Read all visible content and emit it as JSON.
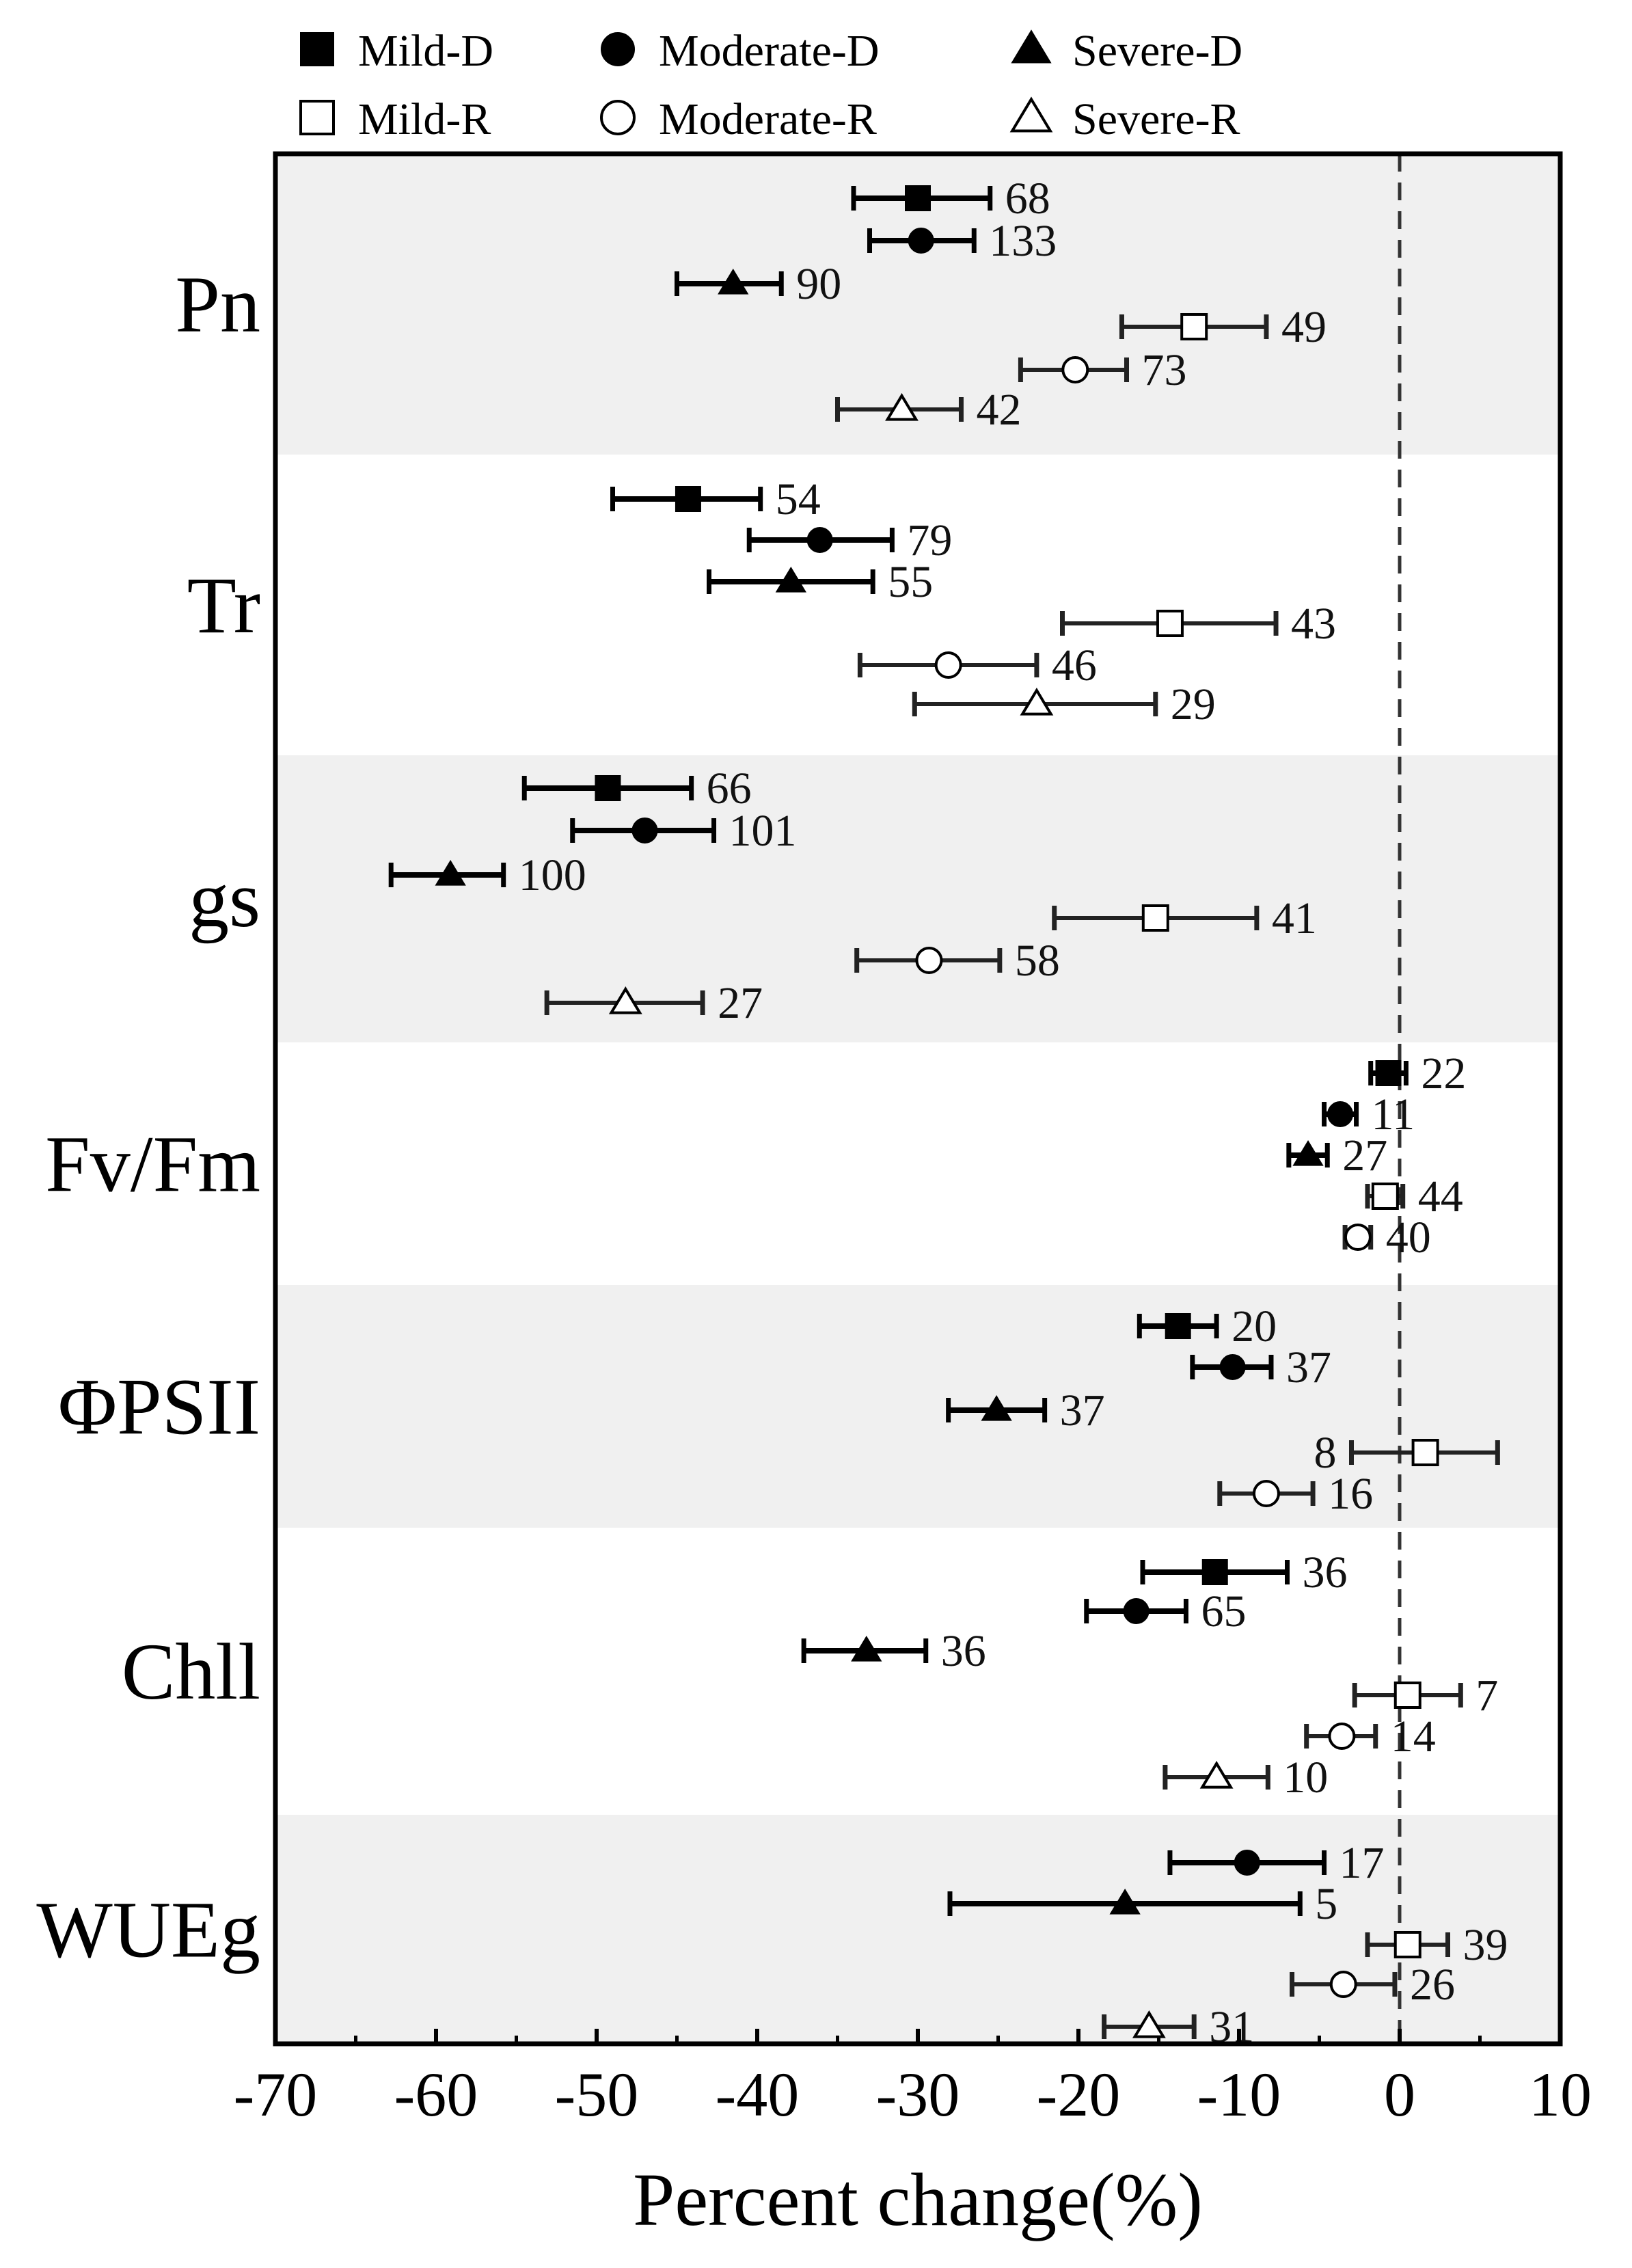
{
  "chart_data": {
    "type": "forest",
    "xlabel": "Percent change(%)",
    "xlim": [
      -70,
      10
    ],
    "xticks": [
      -70,
      -60,
      -50,
      -40,
      -30,
      -20,
      -10,
      0,
      10
    ],
    "reference_line": 0,
    "legend": [
      {
        "name": "Mild-D",
        "marker": "square",
        "fill": "filled"
      },
      {
        "name": "Moderate-D",
        "marker": "circle",
        "fill": "filled"
      },
      {
        "name": "Severe-D",
        "marker": "triangle",
        "fill": "filled"
      },
      {
        "name": "Mild-R",
        "marker": "square",
        "fill": "open"
      },
      {
        "name": "Moderate-R",
        "marker": "circle",
        "fill": "open"
      },
      {
        "name": "Severe-R",
        "marker": "triangle",
        "fill": "open"
      }
    ],
    "groups": [
      {
        "name": "Pn",
        "shaded": true,
        "points": [
          {
            "series": "Mild-D",
            "value": -30,
            "low": -34,
            "high": -25.5,
            "n": "68"
          },
          {
            "series": "Moderate-D",
            "value": -29.8,
            "low": -33,
            "high": -26.5,
            "n": "133"
          },
          {
            "series": "Severe-D",
            "value": -41.5,
            "low": -45,
            "high": -38.5,
            "n": "90"
          },
          {
            "series": "Mild-R",
            "value": -12.8,
            "low": -17.3,
            "high": -8.3,
            "n": "49"
          },
          {
            "series": "Moderate-R",
            "value": -20.2,
            "low": -23.6,
            "high": -17,
            "n": "73"
          },
          {
            "series": "Severe-R",
            "value": -31,
            "low": -35,
            "high": -27.3,
            "n": "42"
          }
        ]
      },
      {
        "name": "Tr",
        "shaded": false,
        "points": [
          {
            "series": "Mild-D",
            "value": -44.3,
            "low": -49,
            "high": -39.8,
            "n": "54"
          },
          {
            "series": "Moderate-D",
            "value": -36.1,
            "low": -40.5,
            "high": -31.6,
            "n": "79"
          },
          {
            "series": "Severe-D",
            "value": -37.9,
            "low": -43,
            "high": -32.8,
            "n": "55"
          },
          {
            "series": "Mild-R",
            "value": -14.3,
            "low": -21,
            "high": -7.7,
            "n": "43"
          },
          {
            "series": "Moderate-R",
            "value": -28.1,
            "low": -33.6,
            "high": -22.6,
            "n": "46"
          },
          {
            "series": "Severe-R",
            "value": -22.6,
            "low": -30.2,
            "high": -15.2,
            "n": "29"
          }
        ]
      },
      {
        "name": "gs",
        "shaded": true,
        "points": [
          {
            "series": "Mild-D",
            "value": -49.3,
            "low": -54.5,
            "high": -44.1,
            "n": "66"
          },
          {
            "series": "Moderate-D",
            "value": -47,
            "low": -51.5,
            "high": -42.7,
            "n": "101"
          },
          {
            "series": "Severe-D",
            "value": -59.1,
            "low": -62.8,
            "high": -55.8,
            "n": "100"
          },
          {
            "series": "Mild-R",
            "value": -15.2,
            "low": -21.5,
            "high": -8.9,
            "n": "41"
          },
          {
            "series": "Moderate-R",
            "value": -29.3,
            "low": -33.8,
            "high": -24.9,
            "n": "58"
          },
          {
            "series": "Severe-R",
            "value": -48.2,
            "low": -53.1,
            "high": -43.4,
            "n": "27"
          }
        ]
      },
      {
        "name": "Fv/Fm",
        "shaded": false,
        "points": [
          {
            "series": "Mild-D",
            "value": -0.7,
            "low": -1.8,
            "high": 0.4,
            "n": "22"
          },
          {
            "series": "Moderate-D",
            "value": -3.7,
            "low": -4.7,
            "high": -2.7,
            "n": "11"
          },
          {
            "series": "Severe-D",
            "value": -5.7,
            "low": -6.9,
            "high": -4.5,
            "n": "27"
          },
          {
            "series": "Mild-R",
            "value": -0.9,
            "low": -2,
            "high": 0.2,
            "n": "44"
          },
          {
            "series": "Moderate-R",
            "value": -2.6,
            "low": -3.4,
            "high": -1.8,
            "n": "40"
          },
          {
            "series": "Severe-R",
            "value": null,
            "low": null,
            "high": null,
            "n": ""
          }
        ]
      },
      {
        "name": "ΦPSII",
        "shaded": true,
        "points": [
          {
            "series": "Mild-D",
            "value": -13.8,
            "low": -16.2,
            "high": -11.4,
            "n": "20"
          },
          {
            "series": "Moderate-D",
            "value": -10.4,
            "low": -12.9,
            "high": -8,
            "n": "37"
          },
          {
            "series": "Severe-D",
            "value": -25.1,
            "low": -28.1,
            "high": -22.1,
            "n": "37"
          },
          {
            "series": "Mild-R",
            "value": 1.6,
            "low": -3,
            "high": 6.1,
            "n": "8"
          },
          {
            "series": "Moderate-R",
            "value": -8.3,
            "low": -11.2,
            "high": -5.4,
            "n": "16"
          },
          {
            "series": "Severe-R",
            "value": null,
            "low": null,
            "high": null,
            "n": ""
          }
        ]
      },
      {
        "name": "Chll",
        "shaded": false,
        "points": [
          {
            "series": "Mild-D",
            "value": -11.5,
            "low": -16,
            "high": -7,
            "n": "36"
          },
          {
            "series": "Moderate-D",
            "value": -16.4,
            "low": -19.5,
            "high": -13.3,
            "n": "65"
          },
          {
            "series": "Severe-D",
            "value": -33.2,
            "low": -37.1,
            "high": -29.5,
            "n": "36"
          },
          {
            "series": "Mild-R",
            "value": 0.5,
            "low": -2.8,
            "high": 3.8,
            "n": "7"
          },
          {
            "series": "Moderate-R",
            "value": -3.6,
            "low": -5.8,
            "high": -1.5,
            "n": "14"
          },
          {
            "series": "Severe-R",
            "value": -11.4,
            "low": -14.6,
            "high": -8.2,
            "n": "10"
          }
        ]
      },
      {
        "name": "WUEg",
        "shaded": true,
        "points": [
          {
            "series": "Mild-D",
            "value": null,
            "low": null,
            "high": null,
            "n": ""
          },
          {
            "series": "Moderate-D",
            "value": -9.5,
            "low": -14.3,
            "high": -4.7,
            "n": "17"
          },
          {
            "series": "Severe-D",
            "value": -17.1,
            "low": -28,
            "high": -6.2,
            "n": "5"
          },
          {
            "series": "Mild-R",
            "value": 0.5,
            "low": -2,
            "high": 3,
            "n": "39"
          },
          {
            "series": "Moderate-R",
            "value": -3.5,
            "low": -6.7,
            "high": -0.3,
            "n": "26"
          },
          {
            "series": "Severe-R",
            "value": -15.6,
            "low": -18.4,
            "high": -12.8,
            "n": "31"
          }
        ]
      }
    ]
  }
}
